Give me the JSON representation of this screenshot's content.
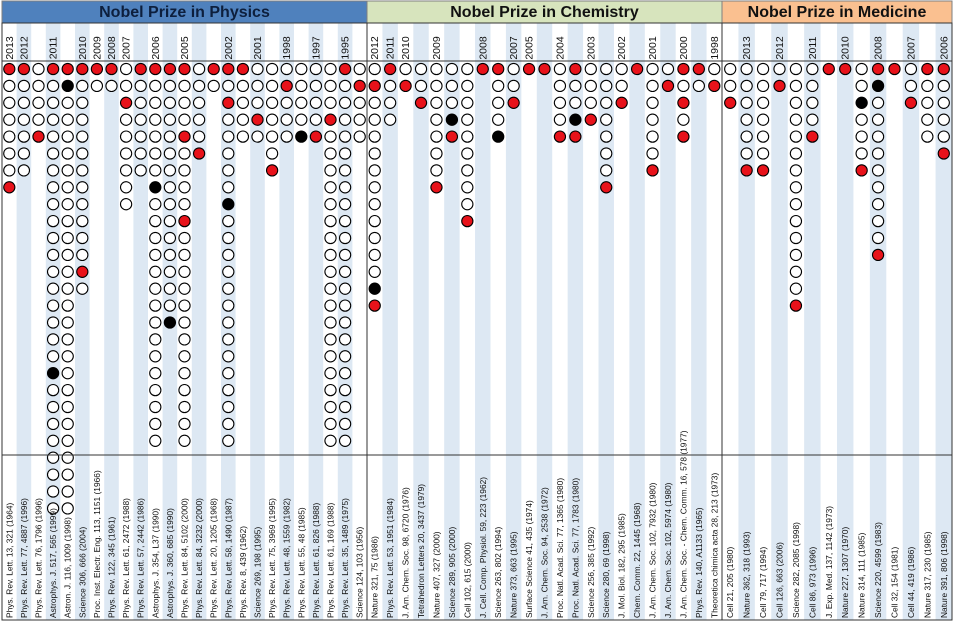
{
  "colors": {
    "physics_header": "#4f81bd",
    "chemistry_header": "#d7e4bd",
    "medicine_header": "#fac090",
    "stripe": "#dde8f3",
    "original_paper": "#e8121a",
    "nobel_citation": "#000000",
    "other_citation": "#ffffff"
  },
  "chart_data": {
    "type": "dot-matrix",
    "marker_legend": {
      "red": "original paper marker",
      "black": "highlighted citation marker",
      "open": "other citation marker"
    },
    "panels": [
      {
        "title": "Nobel Prize in Physics",
        "header_color": "#4f81bd",
        "columns": [
          {
            "ref": "Phys. Rev. Lett. 13, 321 (1964)",
            "year": "2013",
            "count": 8,
            "red": [
              0,
              7
            ],
            "black": []
          },
          {
            "ref": "Phys. Rev. Lett. 77, 4887 (1996)",
            "year": "2012",
            "count": 7,
            "red": [
              0
            ],
            "black": []
          },
          {
            "ref": "Phys. Rev. Lett. 76, 1796 (1996)",
            "year": "",
            "count": 5,
            "red": [
              4
            ],
            "black": []
          },
          {
            "ref": "Astrophys. J. 517, 565 (1999)",
            "year": "2011",
            "count": 27,
            "red": [
              0
            ],
            "black": [
              18
            ]
          },
          {
            "ref": "Astron. J. 116, 1009 (1998)",
            "year": "",
            "count": 27,
            "red": [
              0
            ],
            "black": [
              1
            ]
          },
          {
            "ref": "Science 306, 666 (2004)",
            "year": "2010",
            "count": 14,
            "red": [
              0,
              12
            ],
            "black": []
          },
          {
            "ref": "Proc. Inst. Electr. Eng. 113, 1151 (1966)",
            "year": "2009",
            "count": 2,
            "red": [
              0
            ],
            "black": []
          },
          {
            "ref": "Phys. Rev. 122, 345 (1961)",
            "year": "2008",
            "count": 2,
            "red": [
              0
            ],
            "black": []
          },
          {
            "ref": "Phys. Rev. Lett. 61, 2472 (1988)",
            "year": "2007",
            "count": 9,
            "red": [
              2
            ],
            "black": []
          },
          {
            "ref": "Phys. Rev. Lett. 57, 2442 (1986)",
            "year": "",
            "count": 7,
            "red": [
              0
            ],
            "black": []
          },
          {
            "ref": "Astrophys. J. 354, L37 (1990)",
            "year": "2006",
            "count": 23,
            "red": [
              0
            ],
            "black": [
              7
            ]
          },
          {
            "ref": "Astrophys. J. 360, 685 (1990)",
            "year": "",
            "count": 16,
            "red": [
              0
            ],
            "black": [
              15
            ]
          },
          {
            "ref": "Phys. Rev. Lett. 84, 5102 (2000)",
            "year": "2005",
            "count": 23,
            "red": [
              0,
              4,
              9
            ],
            "black": []
          },
          {
            "ref": "Phys. Rev. Lett. 84, 3232 (2000)",
            "year": "",
            "count": 6,
            "red": [
              5
            ],
            "black": []
          },
          {
            "ref": "Phys. Rev. Lett. 20, 1205 (1968)",
            "year": "",
            "count": 2,
            "red": [
              0
            ],
            "black": []
          },
          {
            "ref": "Phys. Rev. Lett. 58, 1490 (1987)",
            "year": "2002",
            "count": 23,
            "red": [
              0,
              2
            ],
            "black": [
              8
            ]
          },
          {
            "ref": "Phys. Rev. 8, 439 (1962)",
            "year": "",
            "count": 5,
            "red": [
              0
            ],
            "black": []
          },
          {
            "ref": "Science 269, 198 (1995)",
            "year": "2001",
            "count": 5,
            "red": [
              3
            ],
            "black": []
          },
          {
            "ref": "Phys. Rev. Lett. 75, 3969 (1995)",
            "year": "",
            "count": 7,
            "red": [
              6
            ],
            "black": []
          },
          {
            "ref": "Phys. Rev. Lett. 48, 1559 (1982)",
            "year": "1998",
            "count": 5,
            "red": [
              1
            ],
            "black": []
          },
          {
            "ref": "Phys. Rev. Lett. 55, 48 (1985)",
            "year": "",
            "count": 5,
            "red": [],
            "black": [
              4
            ]
          },
          {
            "ref": "Phys. Rev. Lett. 61, 826 (1988)",
            "year": "1997",
            "count": 5,
            "red": [
              4
            ],
            "black": []
          },
          {
            "ref": "Phys. Rev. Lett. 61, 169 (1988)",
            "year": "",
            "count": 23,
            "red": [
              3
            ],
            "black": []
          },
          {
            "ref": "Phys. Rev. Lett. 35, 1489 (1975)",
            "year": "1995",
            "count": 23,
            "red": [
              0
            ],
            "black": []
          },
          {
            "ref": "Science 124, 103 (1956)",
            "year": "",
            "count": 5,
            "red": [
              1
            ],
            "black": []
          }
        ]
      },
      {
        "title": "Nobel Prize in Chemistry",
        "header_color": "#d7e4bd",
        "columns": [
          {
            "ref": "Nature 321, 75 (1986)",
            "year": "2012",
            "count": 15,
            "red": [
              1,
              14
            ],
            "black": [
              13
            ]
          },
          {
            "ref": "Phys. Rev. Lett. 53, 1951 (1984)",
            "year": "2011",
            "count": 4,
            "red": [
              0
            ],
            "black": []
          },
          {
            "ref": "J. Am. Chem. Soc. 98, 6720 (1976)",
            "year": "2010",
            "count": 2,
            "red": [
              1
            ],
            "black": []
          },
          {
            "ref": "Tetrahedron Letters 20, 3437 (1979)",
            "year": "",
            "count": 3,
            "red": [
              2
            ],
            "black": []
          },
          {
            "ref": "Nature 407, 327 (2000)",
            "year": "2009",
            "count": 8,
            "red": [
              7
            ],
            "black": []
          },
          {
            "ref": "Science 289, 905 (2000)",
            "year": "",
            "count": 5,
            "red": [
              4
            ],
            "black": [
              3
            ]
          },
          {
            "ref": "Cell 102, 615 (2000)",
            "year": "",
            "count": 10,
            "red": [
              9
            ],
            "black": []
          },
          {
            "ref": "J. Cell. Comp. Physiol. 59, 223 (1962)",
            "year": "2008",
            "count": 1,
            "red": [
              0
            ],
            "black": []
          },
          {
            "ref": "Science 263, 802 (1994)",
            "year": "",
            "count": 5,
            "red": [
              0
            ],
            "black": [
              4
            ]
          },
          {
            "ref": "Nature 373, 663 (1995)",
            "year": "2007",
            "count": 3,
            "red": [
              2
            ],
            "black": []
          },
          {
            "ref": "Surface Science 41, 435 (1974)",
            "year": "2005",
            "count": 1,
            "red": [
              0
            ],
            "black": []
          },
          {
            "ref": "J. Am. Chem. Soc. 94, 2538 (1972)",
            "year": "",
            "count": 1,
            "red": [
              0
            ],
            "black": []
          },
          {
            "ref": "Proc. Natl. Acad. Sci. 77, 1365 (1980)",
            "year": "2004",
            "count": 5,
            "red": [
              4
            ],
            "black": []
          },
          {
            "ref": "Proc. Natl. Acad. Sci. 77, 1783 (1980)",
            "year": "",
            "count": 5,
            "red": [
              0,
              4
            ],
            "black": [
              3
            ]
          },
          {
            "ref": "Science 256, 385 (1992)",
            "year": "2003",
            "count": 4,
            "red": [
              3
            ],
            "black": []
          },
          {
            "ref": "Science 280, 69 (1998)",
            "year": "",
            "count": 8,
            "red": [
              7
            ],
            "black": []
          },
          {
            "ref": "J. Mol. Biol. 182, 295 (1985)",
            "year": "2002",
            "count": 3,
            "red": [
              2
            ],
            "black": []
          },
          {
            "ref": "Chem. Comm. 22, 1445 (1968)",
            "year": "",
            "count": 1,
            "red": [
              0
            ],
            "black": []
          },
          {
            "ref": "J. Am. Chem. Soc. 102, 7932 (1980)",
            "year": "2001",
            "count": 7,
            "red": [
              6
            ],
            "black": []
          },
          {
            "ref": "J. Am. Chem. Soc. 102, 5974 (1980)",
            "year": "",
            "count": 2,
            "red": [
              1
            ],
            "black": []
          },
          {
            "ref": "J. Am. Chem. Soc. - Chem. Comm. 16, 578 (1977)",
            "year": "2000",
            "count": 5,
            "red": [
              0,
              2,
              4
            ],
            "black": []
          },
          {
            "ref": "Phys. Rev. 140, A1133 (1965)",
            "year": "",
            "count": 2,
            "red": [
              0
            ],
            "black": []
          },
          {
            "ref": "Theoretica chimica acta 28, 213 (1973)",
            "year": "1998",
            "count": 2,
            "red": [
              1
            ],
            "black": []
          }
        ]
      },
      {
        "title": "Nobel Prize in Medicine",
        "header_color": "#fac090",
        "columns": [
          {
            "ref": "Cell 21, 205 (1980)",
            "year": "",
            "count": 3,
            "red": [
              2
            ],
            "black": []
          },
          {
            "ref": "Nature 362, 318 (1993)",
            "year": "2013",
            "count": 7,
            "red": [
              6
            ],
            "black": []
          },
          {
            "ref": "Cell 79, 717 (1994)",
            "year": "",
            "count": 7,
            "red": [
              6
            ],
            "black": []
          },
          {
            "ref": "Cell 126, 663 (2006)",
            "year": "2012",
            "count": 2,
            "red": [
              1
            ],
            "black": []
          },
          {
            "ref": "Science 282, 2085 (1998)",
            "year": "",
            "count": 15,
            "red": [
              14
            ],
            "black": []
          },
          {
            "ref": "Cell 86, 973 (1996)",
            "year": "2011",
            "count": 5,
            "red": [
              4
            ],
            "black": []
          },
          {
            "ref": "J. Exp. Med. 137, 1142 (1973)",
            "year": "",
            "count": 1,
            "red": [
              0
            ],
            "black": []
          },
          {
            "ref": "Nature 227, 1307 (1970)",
            "year": "2010",
            "count": 1,
            "red": [
              0
            ],
            "black": []
          },
          {
            "ref": "Nature 314, 111 (1985)",
            "year": "",
            "count": 7,
            "red": [
              6
            ],
            "black": [
              2
            ]
          },
          {
            "ref": "Science 220, 4599 (1983)",
            "year": "2008",
            "count": 12,
            "red": [
              0,
              11
            ],
            "black": [
              1
            ]
          },
          {
            "ref": "Cell 32, 154 (1981)",
            "year": "",
            "count": 1,
            "red": [
              0
            ],
            "black": []
          },
          {
            "ref": "Cell 44, 419 (1986)",
            "year": "2007",
            "count": 3,
            "red": [
              2
            ],
            "black": []
          },
          {
            "ref": "Nature 317, 230 (1985)",
            "year": "",
            "count": 5,
            "red": [
              0
            ],
            "black": []
          },
          {
            "ref": "Nature 391, 806 (1998)",
            "year": "2006",
            "count": 6,
            "red": [
              0,
              5
            ],
            "black": []
          }
        ]
      }
    ]
  }
}
